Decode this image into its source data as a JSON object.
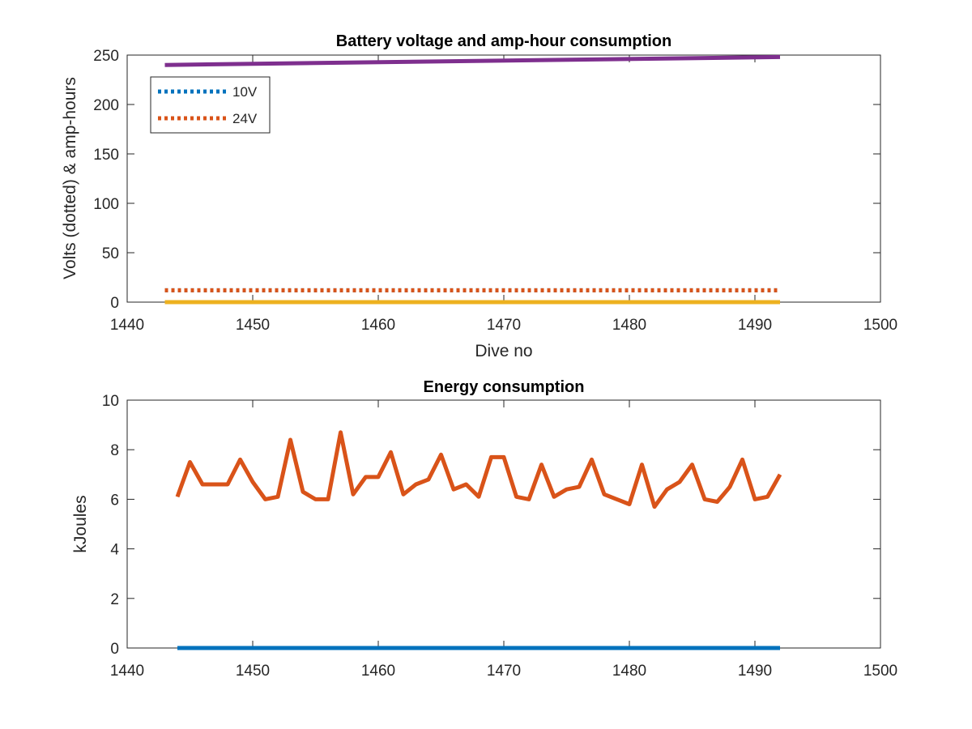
{
  "chart_data": [
    {
      "type": "line",
      "title": "Battery voltage and amp-hour consumption",
      "xlabel": "Dive no",
      "ylabel": "Volts (dotted) & amp-hours",
      "xlim": [
        1440,
        1500
      ],
      "ylim": [
        0,
        250
      ],
      "xticks": [
        1440,
        1450,
        1460,
        1470,
        1480,
        1490,
        1500
      ],
      "yticks": [
        0,
        50,
        100,
        150,
        200,
        250
      ],
      "grid": false,
      "legend_position": "top-left",
      "series": [
        {
          "name": "10V",
          "style": "dotted",
          "color": "#0072BD",
          "x": [
            1443,
            1492
          ],
          "y": [
            12,
            12
          ]
        },
        {
          "name": "24V",
          "style": "dotted",
          "color": "#D95319",
          "x": [
            1443,
            1492
          ],
          "y": [
            12,
            12
          ]
        },
        {
          "style": "solid",
          "color": "#EDB120",
          "x": [
            1443,
            1492
          ],
          "y": [
            0,
            0
          ]
        },
        {
          "style": "solid",
          "color": "#7E2F8E",
          "x": [
            1443,
            1492
          ],
          "y": [
            240,
            248
          ]
        }
      ]
    },
    {
      "type": "line",
      "title": "Energy consumption",
      "xlabel": "",
      "ylabel": "kJoules",
      "xlim": [
        1440,
        1500
      ],
      "ylim": [
        0,
        10
      ],
      "xticks": [
        1440,
        1450,
        1460,
        1470,
        1480,
        1490,
        1500
      ],
      "yticks": [
        0,
        2,
        4,
        6,
        8,
        10
      ],
      "grid": false,
      "series": [
        {
          "style": "solid",
          "color": "#0072BD",
          "x": [
            1444,
            1492
          ],
          "y": [
            0,
            0
          ]
        },
        {
          "style": "solid",
          "color": "#D95319",
          "x": [
            1444,
            1445,
            1446,
            1447,
            1448,
            1449,
            1450,
            1451,
            1452,
            1453,
            1454,
            1455,
            1456,
            1457,
            1458,
            1459,
            1460,
            1461,
            1462,
            1463,
            1464,
            1465,
            1466,
            1467,
            1468,
            1469,
            1470,
            1471,
            1472,
            1473,
            1474,
            1475,
            1476,
            1477,
            1478,
            1479,
            1480,
            1481,
            1482,
            1483,
            1484,
            1485,
            1486,
            1487,
            1488,
            1489,
            1490,
            1491,
            1492
          ],
          "y": [
            6.1,
            7.5,
            6.6,
            6.6,
            6.6,
            7.6,
            6.7,
            6.0,
            6.1,
            8.4,
            6.3,
            6.0,
            6.0,
            8.7,
            6.2,
            6.9,
            6.9,
            7.9,
            6.2,
            6.6,
            6.8,
            7.8,
            6.4,
            6.6,
            6.1,
            7.7,
            7.7,
            6.1,
            6.0,
            7.4,
            6.1,
            6.4,
            6.5,
            7.6,
            6.2,
            6.0,
            5.8,
            7.4,
            5.7,
            6.4,
            6.7,
            7.4,
            6.0,
            5.9,
            6.5,
            7.6,
            6.0,
            6.1,
            7.0
          ]
        }
      ]
    }
  ]
}
